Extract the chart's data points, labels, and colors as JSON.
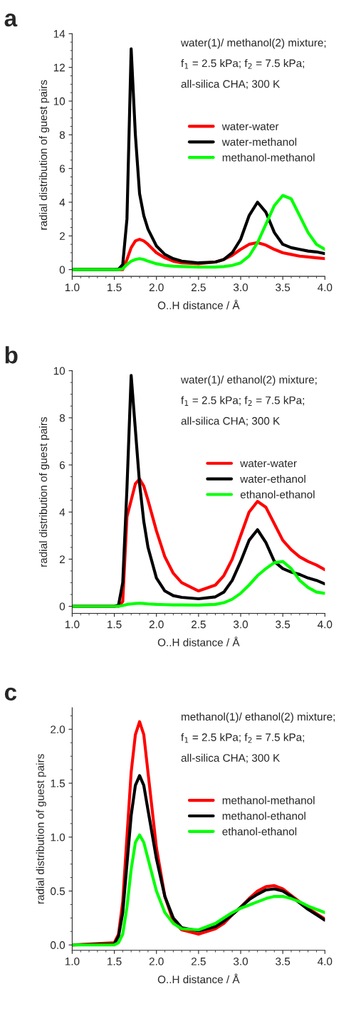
{
  "chart_data": [
    {
      "type": "line",
      "title": "a",
      "xlabel": "O..H distance / Å",
      "ylabel": "radial distribution of guest pairs",
      "annotations": [
        "water(1)/ methanol(2) mixture;",
        "f$_{1}$ = 2.5 kPa; f$_{2}$ = 7.5 kPa;",
        "all-silica CHA; 300 K"
      ],
      "x": [
        1.0,
        1.5,
        1.55,
        1.6,
        1.65,
        1.7,
        1.75,
        1.8,
        1.85,
        1.9,
        2.0,
        2.1,
        2.2,
        2.3,
        2.5,
        2.7,
        2.8,
        2.9,
        3.0,
        3.1,
        3.2,
        3.3,
        3.4,
        3.5,
        3.6,
        3.7,
        3.8,
        3.9,
        4.0
      ],
      "series": [
        {
          "name": "water-water",
          "color": "#ff0000",
          "values": [
            0,
            0,
            0,
            0,
            0.6,
            1.3,
            1.7,
            1.8,
            1.7,
            1.5,
            1.0,
            0.7,
            0.5,
            0.4,
            0.35,
            0.45,
            0.6,
            0.85,
            1.2,
            1.5,
            1.6,
            1.45,
            1.2,
            1.0,
            0.9,
            0.8,
            0.75,
            0.7,
            0.65
          ]
        },
        {
          "name": "water-methanol",
          "color": "#000000",
          "values": [
            0,
            0,
            0.02,
            0.3,
            3,
            13.1,
            8,
            4.5,
            3.2,
            2.4,
            1.4,
            0.9,
            0.65,
            0.5,
            0.4,
            0.45,
            0.6,
            1.0,
            1.8,
            3.2,
            4.0,
            3.4,
            2.2,
            1.5,
            1.3,
            1.2,
            1.1,
            1.05,
            0.95
          ]
        },
        {
          "name": "methanol-methanol",
          "color": "#00ff00",
          "values": [
            0,
            0,
            0,
            0.05,
            0.3,
            0.5,
            0.6,
            0.65,
            0.6,
            0.5,
            0.35,
            0.25,
            0.2,
            0.18,
            0.15,
            0.15,
            0.18,
            0.25,
            0.4,
            0.8,
            1.6,
            2.7,
            3.8,
            4.4,
            4.2,
            3.2,
            2.2,
            1.5,
            1.2
          ]
        }
      ],
      "xlim": [
        1.0,
        4.0
      ],
      "xticks": [
        {
          "value": 1,
          "label": "1.0"
        },
        1.5,
        {
          "value": 2,
          "label": "2.0"
        },
        2.5,
        {
          "value": 3,
          "label": "3.0"
        },
        3.5,
        {
          "value": 4,
          "label": "4.0"
        }
      ],
      "ylim": [
        -0.4,
        14
      ],
      "yticks": [
        0,
        2,
        4,
        6,
        8,
        10,
        12,
        14
      ],
      "grid": false,
      "legend": "center right",
      "marker": "none",
      "line_style": "solid"
    },
    {
      "type": "line",
      "title": "b",
      "xlabel": "O..H distance / Å",
      "ylabel": "radial distribution of guest pairs",
      "annotations": [
        "water(1)/ ethanol(2) mixture;",
        "f$_{1}$ = 2.5 kPa; f$_{2}$ = 7.5 kPa;",
        "all-silica CHA; 300 K"
      ],
      "x": [
        1.0,
        1.5,
        1.55,
        1.6,
        1.65,
        1.7,
        1.75,
        1.8,
        1.85,
        1.9,
        2.0,
        2.1,
        2.2,
        2.3,
        2.5,
        2.7,
        2.8,
        2.9,
        3.0,
        3.1,
        3.2,
        3.3,
        3.4,
        3.5,
        3.6,
        3.7,
        3.8,
        3.9,
        4.0
      ],
      "series": [
        {
          "name": "water-water",
          "color": "#ff0000",
          "values": [
            0,
            0,
            0,
            0.2,
            3.8,
            4.5,
            5.2,
            5.4,
            5.1,
            4.5,
            3.2,
            2.1,
            1.4,
            1.0,
            0.65,
            0.9,
            1.3,
            2.0,
            3.0,
            4.0,
            4.45,
            4.2,
            3.5,
            2.8,
            2.4,
            2.1,
            1.9,
            1.75,
            1.55
          ]
        },
        {
          "name": "water-ethanol",
          "color": "#000000",
          "values": [
            0,
            0,
            0.05,
            1.0,
            5,
            9.8,
            7.5,
            5.2,
            3.6,
            2.5,
            1.2,
            0.65,
            0.45,
            0.38,
            0.32,
            0.4,
            0.6,
            1.1,
            1.9,
            2.8,
            3.25,
            2.7,
            1.9,
            1.6,
            1.45,
            1.35,
            1.2,
            1.1,
            0.95
          ]
        },
        {
          "name": "ethanol-ethanol",
          "color": "#00ff00",
          "values": [
            0,
            0,
            0,
            0.03,
            0.08,
            0.1,
            0.12,
            0.13,
            0.12,
            0.1,
            0.08,
            0.07,
            0.06,
            0.06,
            0.05,
            0.08,
            0.15,
            0.3,
            0.55,
            0.9,
            1.3,
            1.6,
            1.85,
            1.9,
            1.6,
            1.1,
            0.8,
            0.6,
            0.55
          ]
        }
      ],
      "xlim": [
        1.0,
        4.0
      ],
      "xticks": [
        {
          "value": 1,
          "label": "1.0"
        },
        1.5,
        {
          "value": 2,
          "label": "2.0"
        },
        2.5,
        {
          "value": 3,
          "label": "3.0"
        },
        3.5,
        {
          "value": 4,
          "label": "4.0"
        }
      ],
      "ylim": [
        -0.3,
        10
      ],
      "yticks": [
        0,
        2,
        4,
        6,
        8,
        10
      ],
      "grid": false,
      "legend": "center right",
      "marker": "none",
      "line_style": "solid"
    },
    {
      "type": "line",
      "title": "c",
      "xlabel": "O..H distance / Å",
      "ylabel": "radial distribution of guest pairs",
      "annotations": [
        "methanol(1)/ ethanol(2) mixture;",
        "f$_{1}$ = 2.5 kPa; f$_{2}$ = 7.5 kPa;",
        "all-silica CHA; 300 K"
      ],
      "x": [
        1.0,
        1.5,
        1.55,
        1.6,
        1.65,
        1.7,
        1.75,
        1.8,
        1.85,
        1.9,
        2.0,
        2.1,
        2.2,
        2.3,
        2.5,
        2.7,
        2.8,
        2.9,
        3.0,
        3.1,
        3.2,
        3.3,
        3.4,
        3.5,
        3.6,
        3.7,
        3.8,
        3.9,
        4.0
      ],
      "series": [
        {
          "name": "methanol-methanol",
          "color": "#ff0000",
          "values": [
            0,
            0.02,
            0.1,
            0.4,
            1.0,
            1.6,
            1.95,
            2.07,
            1.95,
            1.6,
            0.9,
            0.45,
            0.22,
            0.14,
            0.1,
            0.15,
            0.2,
            0.28,
            0.35,
            0.43,
            0.5,
            0.54,
            0.55,
            0.52,
            0.46,
            0.4,
            0.34,
            0.29,
            0.24
          ]
        },
        {
          "name": "methanol-ethanol",
          "color": "#000000",
          "values": [
            0,
            0.01,
            0.08,
            0.3,
            0.75,
            1.2,
            1.48,
            1.57,
            1.48,
            1.25,
            0.8,
            0.45,
            0.25,
            0.16,
            0.13,
            0.17,
            0.22,
            0.28,
            0.35,
            0.42,
            0.47,
            0.51,
            0.52,
            0.5,
            0.45,
            0.39,
            0.33,
            0.28,
            0.23
          ]
        },
        {
          "name": "ethanol-ethanol",
          "color": "#00ff00",
          "values": [
            0,
            0,
            0.02,
            0.1,
            0.35,
            0.7,
            0.95,
            1.02,
            0.95,
            0.8,
            0.5,
            0.3,
            0.2,
            0.15,
            0.14,
            0.2,
            0.25,
            0.3,
            0.34,
            0.37,
            0.4,
            0.43,
            0.45,
            0.45,
            0.43,
            0.4,
            0.36,
            0.33,
            0.3
          ]
        }
      ],
      "xlim": [
        1.0,
        4.0
      ],
      "xticks": [
        {
          "value": 1,
          "label": "1.0"
        },
        1.5,
        {
          "value": 2,
          "label": "2.0"
        },
        2.5,
        {
          "value": 3,
          "label": "3.0"
        },
        3.5,
        {
          "value": 4,
          "label": "4.0"
        }
      ],
      "ylim": [
        -0.05,
        2.2
      ],
      "yticks": [
        {
          "value": 0,
          "label": "0.0"
        },
        0.5,
        {
          "value": 1,
          "label": "1.0"
        },
        1.5,
        {
          "value": 2,
          "label": "2.0"
        }
      ],
      "grid": false,
      "legend": "center right",
      "marker": "none",
      "line_style": "solid"
    }
  ]
}
